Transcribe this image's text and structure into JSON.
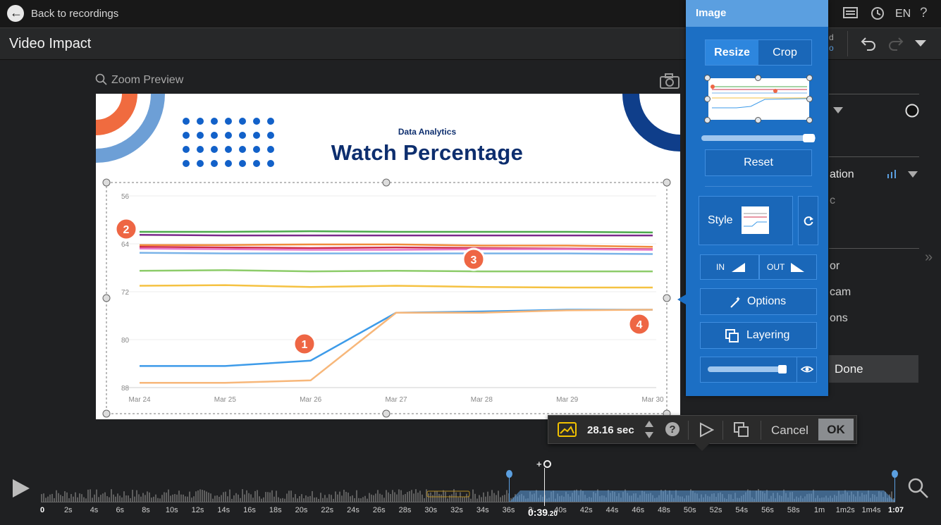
{
  "header": {
    "back_label": "Back to recordings",
    "language": "EN",
    "project_title": "Video Impact"
  },
  "preview": {
    "zoom_label": "Zoom Preview"
  },
  "slide": {
    "subtitle": "Data Analytics",
    "title": "Watch Percentage",
    "markers": [
      "1",
      "2",
      "3",
      "4"
    ]
  },
  "chart_data": {
    "type": "line",
    "categories": [
      "Mar 24",
      "Mar 25",
      "Mar 26",
      "Mar 27",
      "Mar 28",
      "Mar 29",
      "Mar 30"
    ],
    "yticks": [
      "56",
      "64",
      "72",
      "80",
      "88"
    ],
    "ylim": [
      56,
      88
    ],
    "y_inverted": true,
    "series": [
      {
        "color": "#4daa4d",
        "values": [
          62.0,
          62.0,
          61.9,
          62.0,
          62.0,
          62.0,
          62.1
        ]
      },
      {
        "color": "#7a2a8a",
        "values": [
          62.5,
          62.6,
          62.6,
          62.6,
          62.6,
          62.6,
          62.6
        ]
      },
      {
        "color": "#f08a3c",
        "values": [
          64.2,
          64.2,
          64.1,
          64.1,
          64.3,
          64.3,
          64.5
        ]
      },
      {
        "color": "#d12e4a",
        "values": [
          64.5,
          64.6,
          64.7,
          64.6,
          64.7,
          64.8,
          64.9
        ]
      },
      {
        "color": "#e878c8",
        "values": [
          64.8,
          64.9,
          65.0,
          65.0,
          64.9,
          64.9,
          65.0
        ]
      },
      {
        "color": "#7ab3e8",
        "values": [
          65.5,
          65.6,
          65.6,
          65.6,
          65.6,
          65.6,
          65.7
        ]
      },
      {
        "color": "#8dcc6a",
        "values": [
          68.5,
          68.4,
          68.6,
          68.5,
          68.6,
          68.6,
          68.6
        ]
      },
      {
        "color": "#f5c242",
        "values": [
          71.0,
          70.9,
          71.2,
          71.0,
          71.2,
          71.3,
          71.3
        ]
      },
      {
        "color": "#3d9be9",
        "values": [
          84.4,
          84.4,
          83.5,
          75.5,
          75.3,
          75.0,
          75.0
        ]
      },
      {
        "color": "#f7b77a",
        "values": [
          87.2,
          87.2,
          86.8,
          75.5,
          75.5,
          75.1,
          75.0
        ]
      }
    ]
  },
  "image_panel": {
    "title": "Image",
    "tabs": [
      "Resize",
      "Crop"
    ],
    "reset_label": "Reset",
    "style_label": "Style",
    "in_label": "IN",
    "out_label": "OUT",
    "options_label": "Options",
    "layering_label": "Layering",
    "size_level": 0.95,
    "opacity_level": 0.95
  },
  "right_panel": {
    "partial_items": [
      "d",
      "o",
      "ation",
      "c",
      "or",
      "cam",
      "ons"
    ],
    "done_label": "Done"
  },
  "float_toolbar": {
    "duration": "28.16 sec",
    "cancel_label": "Cancel",
    "ok_label": "OK"
  },
  "timeline": {
    "labels": [
      "0",
      "2s",
      "4s",
      "6s",
      "8s",
      "10s",
      "12s",
      "14s",
      "16s",
      "18s",
      "20s",
      "22s",
      "24s",
      "26s",
      "28s",
      "30s",
      "32s",
      "34s",
      "36s",
      "38s",
      "40s",
      "42s",
      "44s",
      "46s",
      "48s",
      "50s",
      "52s",
      "54s",
      "56s",
      "58s",
      "1m",
      "1m2s",
      "1m4s",
      "1:07"
    ],
    "playhead_time": "0:39",
    "playhead_frac": ".20",
    "add_label": "+"
  }
}
